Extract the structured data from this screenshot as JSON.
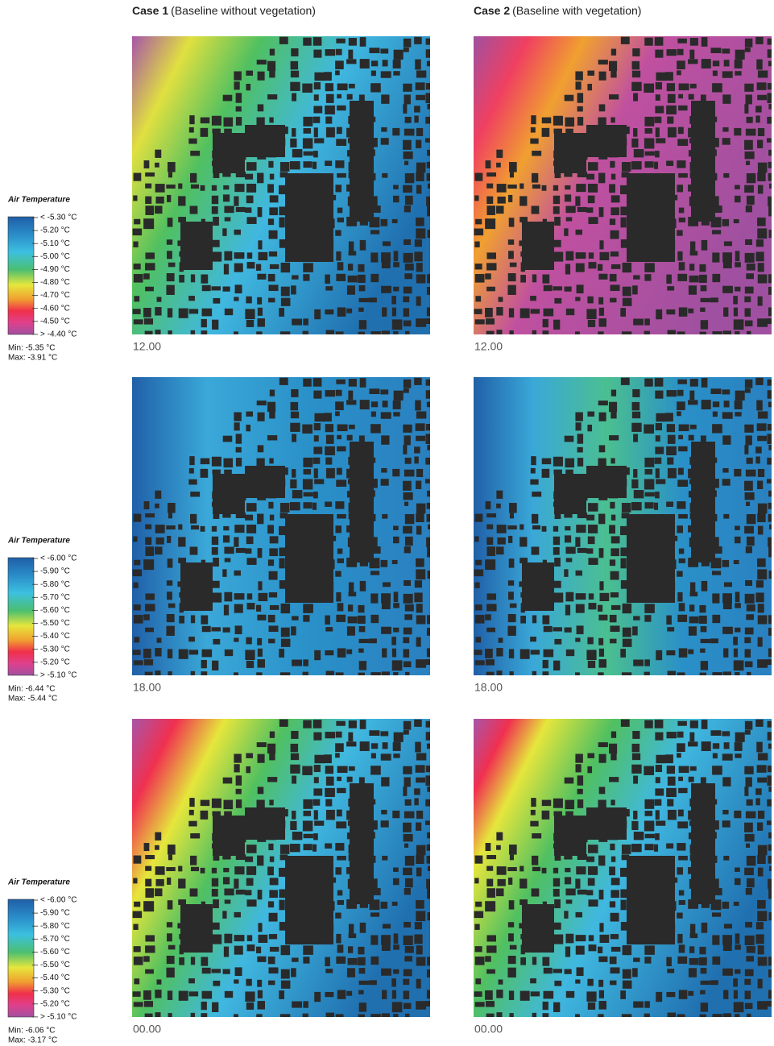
{
  "columns": [
    {
      "label": "Case 1",
      "description": "(Baseline without vegetation)"
    },
    {
      "label": "Case 2",
      "description": "(Baseline with vegetation)"
    }
  ],
  "legends": [
    {
      "title": "Air Temperature",
      "labels": [
        "< -5.30 °C",
        "-5.20  °C",
        "-5.10  °C",
        "-5.00  °C",
        "-4.90  °C",
        "-4.80  °C",
        "-4.70  °C",
        "-4.60  °C",
        "-4.50  °C",
        "> -4.40 °C"
      ],
      "min": "Min: -5.35 °C",
      "max": "Max: -3.91 °C"
    },
    {
      "title": "Air Temperature",
      "labels": [
        "< -6.00 °C",
        "-5.90  °C",
        "-5.80  °C",
        "-5.70  °C",
        "-5.60  °C",
        "-5.50  °C",
        "-5.40  °C",
        "-5.30  °C",
        "-5.20  °C",
        "> -5.10 °C"
      ],
      "min": "Min: -6.44 °C",
      "max": "Max: -5.44 °C"
    },
    {
      "title": "Air Temperature",
      "labels": [
        "< -6.00 °C",
        "-5.90  °C",
        "-5.80  °C",
        "-5.70  °C",
        "-5.60  °C",
        "-5.50  °C",
        "-5.40  °C",
        "-5.30  °C",
        "-5.20  °C",
        "> -5.10 °C"
      ],
      "min": "Min: -6.06 °C",
      "max": "Max: -3.17 °C"
    }
  ],
  "times": [
    [
      "12.00",
      "12.00"
    ],
    [
      "18.00",
      "18.00"
    ],
    [
      "00.00",
      "00.00"
    ]
  ]
}
